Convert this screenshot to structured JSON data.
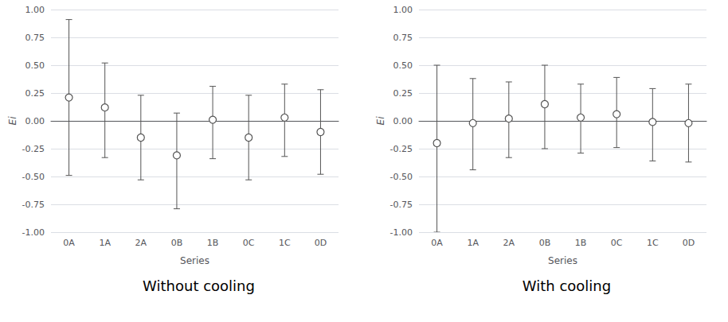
{
  "chart_data": [
    {
      "type": "scatter",
      "title": "Without cooling",
      "xlabel": "Series",
      "ylabel": "Ei",
      "categories": [
        "0A",
        "1A",
        "2A",
        "0B",
        "1B",
        "0C",
        "1C",
        "0D"
      ],
      "values": [
        0.21,
        0.12,
        -0.15,
        -0.31,
        0.01,
        -0.15,
        0.03,
        -0.1
      ],
      "yerr_upper": [
        0.7,
        0.4,
        0.38,
        0.38,
        0.3,
        0.38,
        0.3,
        0.38
      ],
      "yerr_lower": [
        0.7,
        0.45,
        0.38,
        0.48,
        0.35,
        0.38,
        0.35,
        0.38
      ],
      "color": "#555555",
      "marker": "circle",
      "ylim": [
        -1.0,
        1.0
      ],
      "yticks": [
        {
          "value": -1.0,
          "label": "-1.00"
        },
        -0.75,
        {
          "value": -0.5,
          "label": "-0.50"
        },
        -0.25,
        {
          "value": 0.0,
          "label": "0.00"
        },
        0.25,
        {
          "value": 0.5,
          "label": "0.50"
        },
        0.75,
        {
          "value": 1.0,
          "label": "1.00"
        }
      ],
      "grid": true
    },
    {
      "type": "scatter",
      "title": "With cooling",
      "xlabel": "Series",
      "ylabel": "Ei",
      "categories": [
        "0A",
        "1A",
        "2A",
        "0B",
        "1B",
        "0C",
        "1C",
        "0D"
      ],
      "values": [
        -0.2,
        -0.02,
        0.02,
        0.15,
        0.03,
        0.06,
        -0.01,
        -0.02
      ],
      "yerr_upper": [
        0.7,
        0.4,
        0.33,
        0.35,
        0.3,
        0.33,
        0.3,
        0.35
      ],
      "yerr_lower": [
        0.8,
        0.42,
        0.35,
        0.4,
        0.32,
        0.3,
        0.35,
        0.35
      ],
      "color": "#555555",
      "marker": "circle",
      "ylim": [
        -1.0,
        1.0
      ],
      "yticks": [
        {
          "value": -1.0,
          "label": "-1.00"
        },
        -0.75,
        {
          "value": -0.5,
          "label": "-0.50"
        },
        -0.25,
        {
          "value": 0.0,
          "label": "0.00"
        },
        0.25,
        {
          "value": 0.5,
          "label": "0.50"
        },
        0.75,
        {
          "value": 1.0,
          "label": "1.00"
        }
      ],
      "grid": true
    }
  ]
}
